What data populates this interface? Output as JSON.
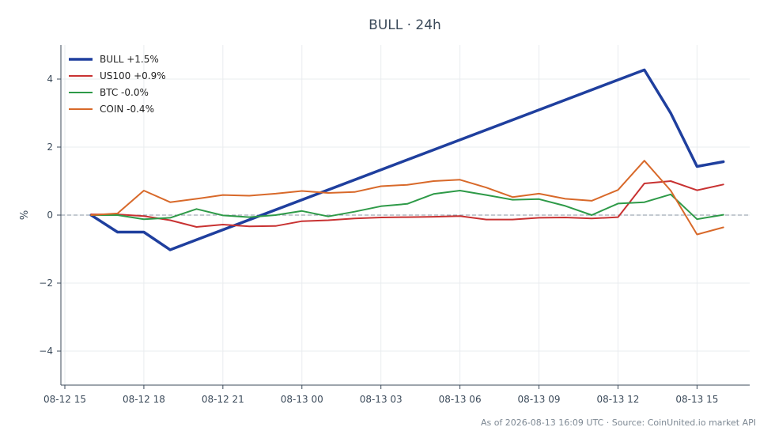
{
  "chart_data": {
    "type": "line",
    "title": "BULL · 24h",
    "xlabel": "",
    "ylabel": "%",
    "footnote": "As of 2026-08-13 16:09 UTC · Source: CoinUnited.io market API",
    "x_ticks": [
      "08-12 15",
      "08-12 18",
      "08-12 21",
      "08-13 00",
      "08-13 03",
      "08-13 06",
      "08-13 09",
      "08-13 12",
      "08-13 15"
    ],
    "x_start": "2026-08-12 15:00",
    "x_end": "2026-08-13 17:00",
    "ylim": [
      -5,
      5
    ],
    "y_ticks": [
      -4,
      -2,
      0,
      2,
      4
    ],
    "y_tick_labels": [
      "−4",
      "−2",
      "0",
      "2",
      "4"
    ],
    "grid": true,
    "zero_line": true,
    "legend_position": "top-left",
    "series": [
      {
        "name": "BULL +1.5%",
        "color": "#1f3f9e",
        "points": [
          [
            "2026-08-12 16:00",
            0.0
          ],
          [
            "2026-08-12 17:00",
            -0.5
          ],
          [
            "2026-08-12 18:00",
            -0.5
          ],
          [
            "2026-08-12 19:00",
            -1.02
          ],
          [
            "2026-08-13 13:00",
            4.27
          ],
          [
            "2026-08-13 14:00",
            3.0
          ],
          [
            "2026-08-13 15:00",
            1.43
          ],
          [
            "2026-08-13 16:00",
            1.57
          ]
        ]
      },
      {
        "name": "US100 +0.9%",
        "color": "#c83232",
        "points": [
          [
            "2026-08-12 16:00",
            0.02
          ],
          [
            "2026-08-12 17:00",
            0.02
          ],
          [
            "2026-08-12 18:00",
            -0.03
          ],
          [
            "2026-08-12 19:00",
            -0.15
          ],
          [
            "2026-08-12 20:00",
            -0.35
          ],
          [
            "2026-08-12 21:00",
            -0.28
          ],
          [
            "2026-08-12 22:00",
            -0.33
          ],
          [
            "2026-08-12 23:00",
            -0.32
          ],
          [
            "2026-08-13 00:00",
            -0.18
          ],
          [
            "2026-08-13 01:00",
            -0.15
          ],
          [
            "2026-08-13 02:00",
            -0.1
          ],
          [
            "2026-08-13 03:00",
            -0.07
          ],
          [
            "2026-08-13 04:00",
            -0.06
          ],
          [
            "2026-08-13 05:00",
            -0.05
          ],
          [
            "2026-08-13 06:00",
            -0.03
          ],
          [
            "2026-08-13 07:00",
            -0.13
          ],
          [
            "2026-08-13 08:00",
            -0.13
          ],
          [
            "2026-08-13 09:00",
            -0.08
          ],
          [
            "2026-08-13 10:00",
            -0.07
          ],
          [
            "2026-08-13 11:00",
            -0.1
          ],
          [
            "2026-08-13 12:00",
            -0.06
          ],
          [
            "2026-08-13 13:00",
            0.93
          ],
          [
            "2026-08-13 14:00",
            1.0
          ],
          [
            "2026-08-13 15:00",
            0.73
          ],
          [
            "2026-08-13 16:00",
            0.9
          ]
        ]
      },
      {
        "name": "BTC -0.0%",
        "color": "#2e9a48",
        "points": [
          [
            "2026-08-12 16:00",
            0.0
          ],
          [
            "2026-08-12 17:00",
            0.0
          ],
          [
            "2026-08-12 18:00",
            -0.12
          ],
          [
            "2026-08-12 19:00",
            -0.08
          ],
          [
            "2026-08-12 20:00",
            0.18
          ],
          [
            "2026-08-12 21:00",
            -0.01
          ],
          [
            "2026-08-12 22:00",
            -0.06
          ],
          [
            "2026-08-12 23:00",
            0.0
          ],
          [
            "2026-08-13 00:00",
            0.12
          ],
          [
            "2026-08-13 01:00",
            -0.04
          ],
          [
            "2026-08-13 02:00",
            0.1
          ],
          [
            "2026-08-13 03:00",
            0.26
          ],
          [
            "2026-08-13 04:00",
            0.33
          ],
          [
            "2026-08-13 05:00",
            0.62
          ],
          [
            "2026-08-13 06:00",
            0.72
          ],
          [
            "2026-08-13 07:00",
            0.59
          ],
          [
            "2026-08-13 08:00",
            0.45
          ],
          [
            "2026-08-13 09:00",
            0.47
          ],
          [
            "2026-08-13 10:00",
            0.27
          ],
          [
            "2026-08-13 11:00",
            0.0
          ],
          [
            "2026-08-13 12:00",
            0.34
          ],
          [
            "2026-08-13 13:00",
            0.38
          ],
          [
            "2026-08-13 14:00",
            0.61
          ],
          [
            "2026-08-13 15:00",
            -0.12
          ],
          [
            "2026-08-13 16:00",
            0.01
          ]
        ]
      },
      {
        "name": "COIN -0.4%",
        "color": "#d8692a",
        "points": [
          [
            "2026-08-12 16:00",
            0.0
          ],
          [
            "2026-08-12 17:00",
            0.05
          ],
          [
            "2026-08-12 18:00",
            0.72
          ],
          [
            "2026-08-12 19:00",
            0.38
          ],
          [
            "2026-08-12 20:00",
            0.48
          ],
          [
            "2026-08-12 21:00",
            0.59
          ],
          [
            "2026-08-12 22:00",
            0.57
          ],
          [
            "2026-08-12 23:00",
            0.63
          ],
          [
            "2026-08-13 00:00",
            0.71
          ],
          [
            "2026-08-13 01:00",
            0.65
          ],
          [
            "2026-08-13 02:00",
            0.68
          ],
          [
            "2026-08-13 03:00",
            0.85
          ],
          [
            "2026-08-13 04:00",
            0.89
          ],
          [
            "2026-08-13 05:00",
            1.0
          ],
          [
            "2026-08-13 06:00",
            1.04
          ],
          [
            "2026-08-13 07:00",
            0.81
          ],
          [
            "2026-08-13 08:00",
            0.53
          ],
          [
            "2026-08-13 09:00",
            0.63
          ],
          [
            "2026-08-13 10:00",
            0.48
          ],
          [
            "2026-08-13 11:00",
            0.42
          ],
          [
            "2026-08-13 12:00",
            0.74
          ],
          [
            "2026-08-13 13:00",
            1.6
          ],
          [
            "2026-08-13 14:00",
            0.72
          ],
          [
            "2026-08-13 15:00",
            -0.57
          ],
          [
            "2026-08-13 16:00",
            -0.36
          ]
        ]
      }
    ]
  }
}
